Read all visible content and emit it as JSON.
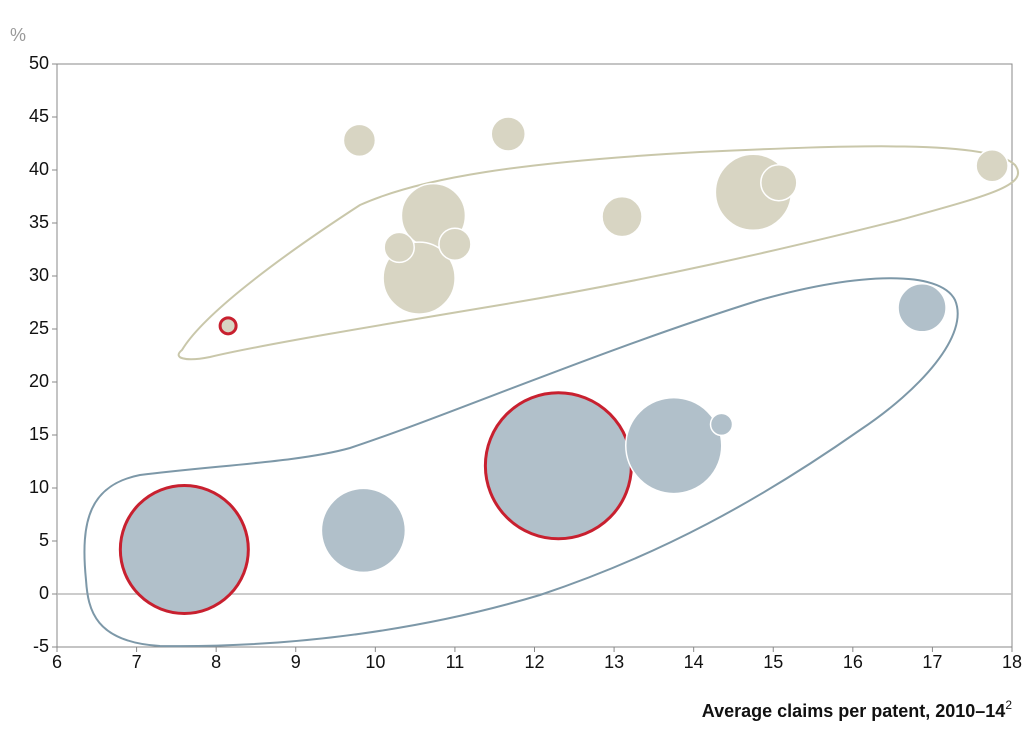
{
  "chart_data": {
    "type": "scatter",
    "y_unit": "%",
    "x_label": "Average claims per patent, 2010–14",
    "x_label_note": "2",
    "xlim": [
      6,
      18
    ],
    "xticks": [
      6,
      7,
      8,
      9,
      10,
      11,
      12,
      13,
      14,
      15,
      16,
      17,
      18
    ],
    "ylim": [
      -5,
      50
    ],
    "yticks": [
      -5,
      0,
      5,
      10,
      15,
      20,
      25,
      30,
      35,
      40,
      45,
      50
    ],
    "highlight_color": "#c8202f",
    "series": [
      {
        "color": "#d8d5c3",
        "x": [
          9.8,
          11.67,
          17.75,
          10.73,
          10.55,
          10.3,
          11.0,
          13.1,
          14.75,
          15.07,
          8.15
        ],
        "y": [
          42.8,
          43.4,
          40.4,
          35.7,
          29.8,
          32.7,
          33.0,
          35.6,
          37.9,
          38.8,
          25.3
        ],
        "sizes": [
          16,
          17,
          16,
          32,
          36,
          15,
          16,
          20,
          38,
          18,
          8
        ],
        "highlight": [
          false,
          false,
          false,
          false,
          false,
          false,
          false,
          false,
          false,
          false,
          true
        ]
      },
      {
        "color": "#b1c0ca",
        "x": [
          7.6,
          9.85,
          12.3,
          13.75,
          14.35,
          16.87
        ],
        "y": [
          4.2,
          6.0,
          12.1,
          14.0,
          16.0,
          27.0
        ],
        "sizes": [
          64,
          42,
          73,
          48,
          11,
          24
        ],
        "highlight": [
          true,
          false,
          true,
          false,
          false,
          false
        ]
      }
    ]
  }
}
